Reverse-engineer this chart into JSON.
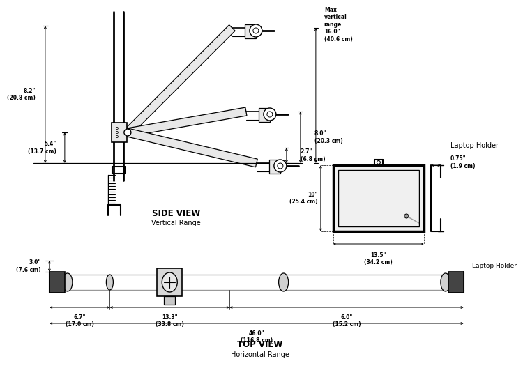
{
  "bg_color": "#ffffff",
  "lc": "#000000",
  "gc": "#999999",
  "arm_fill": "#e8e8e8",
  "arm_edge": "#000000",
  "dark_fill": "#555555",
  "title_side": "SIDE VIEW",
  "sub_side": "Vertical Range",
  "title_top": "TOP VIEW",
  "sub_top": "Horizontal Range",
  "label_laptop": "Laptop Holder",
  "dims": {
    "v1_line1": "8.2\"",
    "v1_line2": "(20.8 cm)",
    "v2_line1": "5.4\"",
    "v2_line2": "(13.7 cm)",
    "v3_line1": "2.7\"",
    "v3_line2": "(6.8 cm)",
    "v4_line1": "8.0\"",
    "v4_line2": "(20.3 cm)",
    "v5_label": "Max\nvertical\nrange",
    "v5_line1": "16.0\"",
    "v5_line2": "(40.6 cm)",
    "lh_w_line1": "13.5\"",
    "lh_w_line2": "(34.2 cm)",
    "lh_h_line1": "10\"",
    "lh_h_line2": "(25.4 cm)",
    "lh_d_line1": "0.75\"",
    "lh_d_line2": "(1.9 cm)",
    "t1_line1": "6.7\"",
    "t1_line2": "(17.0 cm)",
    "t2_line1": "13.3\"",
    "t2_line2": "(33.8 cm)",
    "t3_line1": "6.0\"",
    "t3_line2": "(15.2 cm)",
    "tot_line1": "46.0\"",
    "tot_line2": "(116.8 cm)",
    "tv_h_line1": "3.0\"",
    "tv_h_line2": "(7.6 cm)"
  }
}
